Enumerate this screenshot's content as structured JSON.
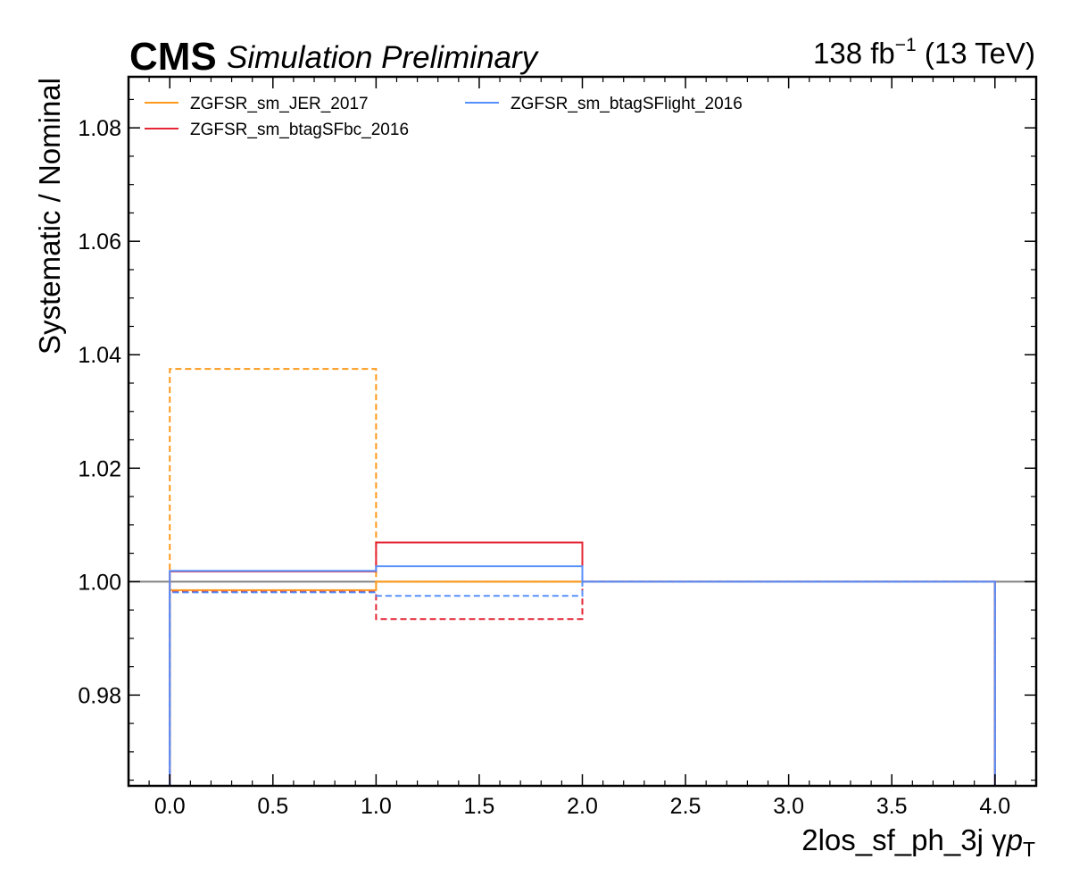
{
  "header": {
    "experiment": "CMS",
    "status": "Simulation Preliminary",
    "lumi_value": "138 fb",
    "lumi_exp": "−1",
    "energy": " (13 TeV)"
  },
  "chart_data": {
    "type": "line",
    "xlabel_text": "2los_sf_ph_3j   γ",
    "xlabel_var": "p",
    "xlabel_sub": "T",
    "ylabel": "Systematic / Nominal",
    "xlim": [
      -0.2,
      4.2
    ],
    "ylim": [
      0.964,
      1.089
    ],
    "xticks": [
      "0.0",
      "0.5",
      "1.0",
      "1.5",
      "2.0",
      "2.5",
      "3.0",
      "3.5",
      "4.0"
    ],
    "yticks": [
      "0.98",
      "1.00",
      "1.02",
      "1.04",
      "1.06",
      "1.08"
    ],
    "reference_line": 1.0,
    "bin_edges": [
      0,
      1,
      2,
      4
    ],
    "legend_position": "top-left",
    "series": [
      {
        "name": "ZGFSR_sm_JER_2017",
        "color": "#ff9a1c",
        "up": [
          0.9985,
          1.0,
          1.0
        ],
        "down": [
          1.0375,
          1.0,
          1.0
        ]
      },
      {
        "name": "ZGFSR_sm_btagSFbc_2016",
        "color": "#e42536",
        "up": [
          1.0018,
          1.0069,
          1.0
        ],
        "down": [
          0.9982,
          0.9934,
          1.0
        ]
      },
      {
        "name": "ZGFSR_sm_btagSFlight_2016",
        "color": "#5790fc",
        "up": [
          1.0019,
          1.0027,
          1.0
        ],
        "down": [
          0.9981,
          0.9975,
          1.0
        ]
      }
    ]
  }
}
